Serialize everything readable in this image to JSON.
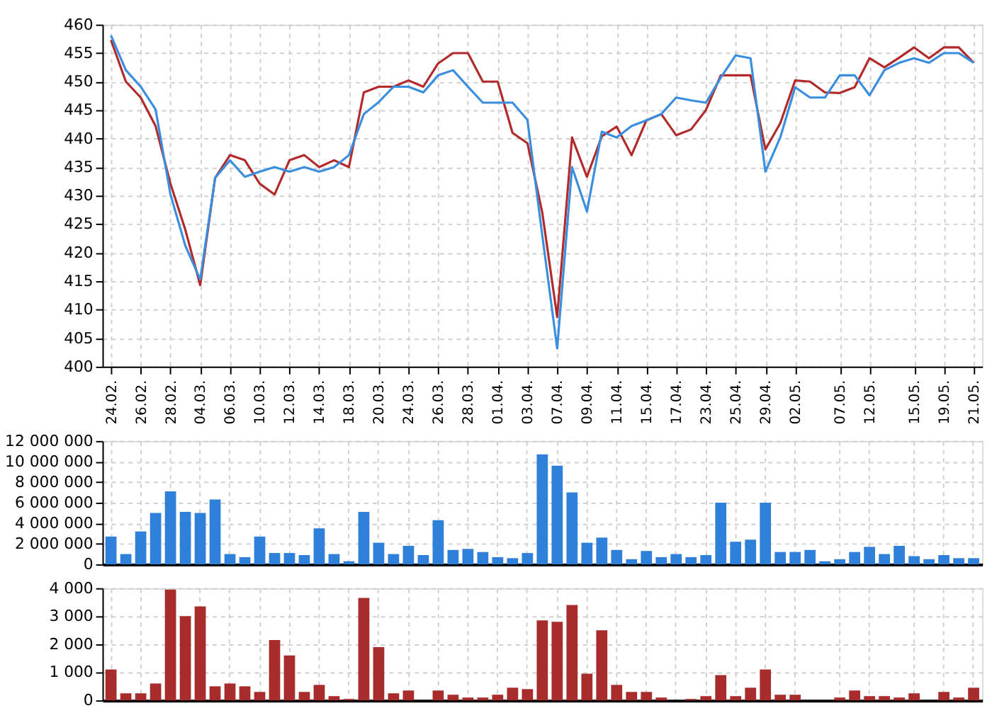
{
  "chart_data": [
    {
      "type": "line",
      "categories": [
        "24.02.",
        null,
        "26.02.",
        null,
        "28.02.",
        null,
        "04.03.",
        null,
        "06.03.",
        null,
        "10.03.",
        null,
        "12.03.",
        null,
        "14.03.",
        null,
        "18.03.",
        null,
        "20.03.",
        null,
        "24.03.",
        null,
        "26.03.",
        null,
        "28.03.",
        null,
        "01.04.",
        null,
        "03.04.",
        null,
        "07.04.",
        null,
        "09.04.",
        null,
        "11.04.",
        null,
        "15.04.",
        null,
        "17.04.",
        null,
        "23.04.",
        null,
        "25.04.",
        null,
        "29.04.",
        null,
        "02.05.",
        null,
        null,
        "07.05.",
        null,
        "12.05.",
        null,
        null,
        "15.05.",
        null,
        "19.05.",
        null,
        "21.05."
      ],
      "series": [
        {
          "color": "#b22a2a",
          "values": [
            457.3,
            450,
            447.2,
            442.2,
            432.1,
            424,
            414.3,
            433.1,
            437.1,
            436.2,
            432.1,
            430.2,
            436.2,
            437.1,
            435,
            436.2,
            435,
            448.1,
            449.1,
            449.1,
            450.2,
            449.1,
            453.2,
            455,
            455,
            450,
            450,
            441,
            439.2,
            427,
            408.7,
            440.2,
            433.3,
            440.4,
            442.1,
            437.1,
            443.2,
            444.3,
            440.6,
            441.6,
            445,
            451.1,
            451.1,
            451.1,
            438.1,
            442.7,
            450.2,
            450,
            448.1,
            448,
            449,
            454.1,
            452.5,
            454.2,
            456,
            454.1,
            456,
            456,
            453.3
          ]
        },
        {
          "color": "#3a8ee0",
          "values": [
            458.1,
            452,
            449.1,
            445.1,
            430.2,
            421.2,
            415.3,
            433.1,
            436.2,
            433.3,
            434.2,
            435,
            434.2,
            435,
            434.2,
            435,
            437.1,
            444.3,
            446.4,
            449.1,
            449.1,
            448.1,
            451.1,
            452,
            449.1,
            446.3,
            446.3,
            446.3,
            443.3,
            423,
            403.2,
            435,
            427.2,
            441.2,
            440.2,
            442.2,
            443.2,
            444.3,
            447.2,
            446.7,
            446.3,
            450.7,
            454.6,
            454.1,
            434.2,
            440.2,
            449,
            447.2,
            447.2,
            451.1,
            451.1,
            447.6,
            452,
            453.3,
            454.1,
            453.3,
            455,
            455,
            453.3
          ]
        }
      ],
      "ylim": [
        400,
        460
      ],
      "yticks": [
        400,
        405,
        410,
        415,
        420,
        425,
        430,
        435,
        440,
        445,
        450,
        455,
        460
      ],
      "grid": true,
      "marker": "none",
      "line_style": "solid"
    },
    {
      "type": "bar",
      "tick_labels": "y",
      "categories": [
        "24.02.",
        null,
        "26.02.",
        null,
        "28.02.",
        null,
        "04.03.",
        null,
        "06.03.",
        null,
        "10.03.",
        null,
        "12.03.",
        null,
        "14.03.",
        null,
        "18.03.",
        null,
        "20.03.",
        null,
        "24.03.",
        null,
        "26.03.",
        null,
        "28.03.",
        null,
        "01.04.",
        null,
        "03.04.",
        null,
        "07.04.",
        null,
        "09.04.",
        null,
        "11.04.",
        null,
        "15.04.",
        null,
        "17.04.",
        null,
        "23.04.",
        null,
        "25.04.",
        null,
        "29.04.",
        null,
        "02.05.",
        null,
        null,
        "07.05.",
        null,
        "12.05.",
        null,
        null,
        "15.05.",
        null,
        "19.05.",
        null,
        "21.05."
      ],
      "series": [
        {
          "color": "#2f80d8",
          "values": [
            2700000,
            1000000,
            3200000,
            5000000,
            7100000,
            5100000,
            5000000,
            6300000,
            1000000,
            700000,
            2700000,
            1100000,
            1100000,
            900000,
            3500000,
            1000000,
            300000,
            5100000,
            2100000,
            1000000,
            1800000,
            900000,
            4300000,
            1400000,
            1500000,
            1200000,
            700000,
            600000,
            1100000,
            10700000,
            9600000,
            7000000,
            2100000,
            2600000,
            1400000,
            500000,
            1300000,
            700000,
            1000000,
            700000,
            900000,
            6000000,
            2200000,
            2400000,
            6000000,
            1200000,
            1200000,
            1400000,
            300000,
            500000,
            1200000,
            1700000,
            1000000,
            1800000,
            800000,
            500000,
            900000,
            600000,
            600000
          ]
        }
      ],
      "ylim": [
        0,
        12000000
      ],
      "yticks": [
        0,
        {
          "value": 2000000,
          "label": "2 000 000"
        },
        {
          "value": 4000000,
          "label": "4 000 000"
        },
        {
          "value": 6000000,
          "label": "6 000 000"
        },
        {
          "value": 8000000,
          "label": "8 000 000"
        },
        {
          "value": 10000000,
          "label": "10 000 000"
        },
        {
          "value": 12000000,
          "label": "12 000 000"
        }
      ],
      "grid": true
    },
    {
      "type": "bar",
      "tick_labels": "y",
      "categories": [
        "24.02.",
        null,
        "26.02.",
        null,
        "28.02.",
        null,
        "04.03.",
        null,
        "06.03.",
        null,
        "10.03.",
        null,
        "12.03.",
        null,
        "14.03.",
        null,
        "18.03.",
        null,
        "20.03.",
        null,
        "24.03.",
        null,
        "26.03.",
        null,
        "28.03.",
        null,
        "01.04.",
        null,
        "03.04.",
        null,
        "07.04.",
        null,
        "09.04.",
        null,
        "11.04.",
        null,
        "15.04.",
        null,
        "17.04.",
        null,
        "23.04.",
        null,
        "25.04.",
        null,
        "29.04.",
        null,
        "02.05.",
        null,
        null,
        "07.05.",
        null,
        "12.05.",
        null,
        null,
        "15.05.",
        null,
        "19.05.",
        null,
        "21.05."
      ],
      "series": [
        {
          "color": "#a82c2c",
          "values": [
            1100,
            250,
            250,
            600,
            3950,
            3000,
            3350,
            500,
            600,
            500,
            300,
            2150,
            1600,
            300,
            550,
            150,
            50,
            3650,
            1900,
            250,
            350,
            0,
            350,
            200,
            100,
            100,
            200,
            450,
            400,
            2850,
            2800,
            3400,
            950,
            2500,
            550,
            300,
            300,
            100,
            0,
            50,
            150,
            900,
            150,
            450,
            1100,
            200,
            200,
            0,
            0,
            100,
            350,
            150,
            150,
            100,
            250,
            0,
            300,
            100,
            450
          ]
        }
      ],
      "ylim": [
        0,
        4000
      ],
      "yticks": [
        0,
        {
          "value": 1000,
          "label": "1 000"
        },
        {
          "value": 2000,
          "label": "2 000"
        },
        {
          "value": 3000,
          "label": "3 000"
        },
        {
          "value": 4000,
          "label": "4 000"
        }
      ],
      "grid": true
    }
  ]
}
